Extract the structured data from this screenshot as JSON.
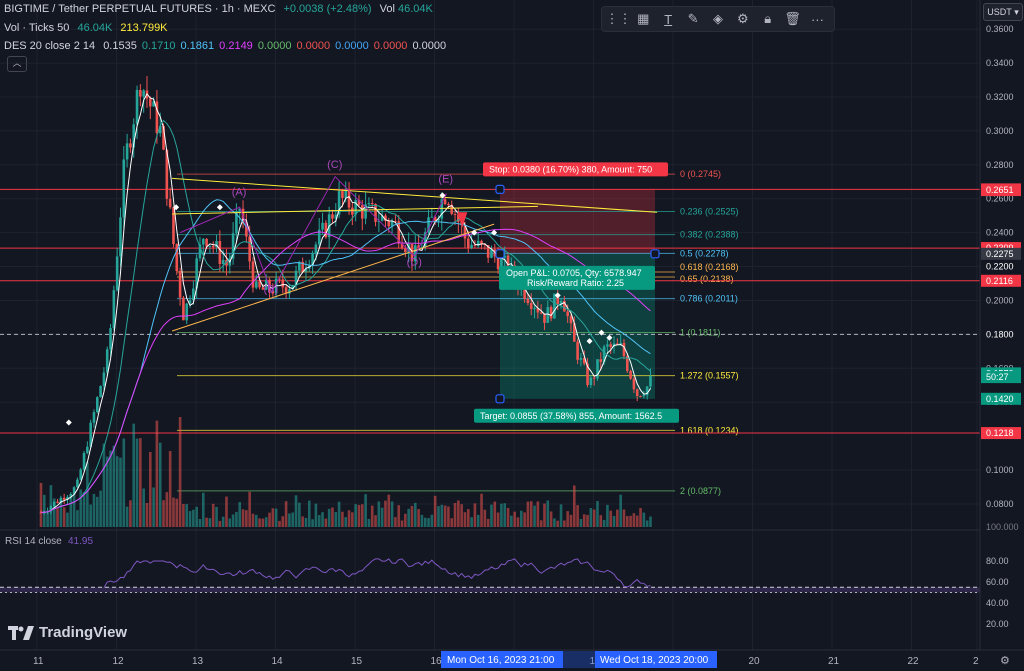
{
  "header": {
    "symbol": "BIGTIME / Tether PERPETUAL FUTURES · 1h · MEXC",
    "change": "+0.0038 (+2.48%)",
    "vol_label": "Vol",
    "vol_value": "46.04K",
    "ticks_label": "Vol · Ticks 50",
    "ticks_v1": "46.04K",
    "ticks_v2": "213.799K",
    "des_label": "DES 20 close 2 14",
    "des_values": [
      "0.1535",
      "0.1710",
      "0.1861",
      "0.2149",
      "0.0000",
      "0.0000",
      "0.0000",
      "0.0000",
      "0.0000"
    ],
    "des_colors": [
      "#d1d4dc",
      "#26a69a",
      "#4fc3f7",
      "#e040fb",
      "#66bb6a",
      "#ef5350",
      "#42a5f5",
      "#ef5350",
      "#d1d4dc"
    ],
    "collapse_icon": "chevron-up-icon"
  },
  "currency": "USDT",
  "toolbar": [
    "grid-icon",
    "text-icon",
    "brush-icon",
    "fill-icon",
    "gear-icon",
    "lock-icon",
    "trash-icon",
    "more-icon"
  ],
  "chart_data": {
    "type": "candlestick",
    "y_axis": {
      "min": 0.0664,
      "max": 0.3654,
      "ticks": [
        "0.3600",
        "0.3400",
        "0.3200",
        "0.3000",
        "0.2800",
        "0.2600",
        "0.2400",
        "0.2200",
        "0.2000",
        "0.1800",
        "0.1600",
        "0.1400",
        "0.1000",
        "0.0800"
      ]
    },
    "x_axis": {
      "ticks": [
        "11",
        "12",
        "13",
        "14",
        "15",
        "16",
        "17",
        "18",
        "19",
        "20",
        "21",
        "22",
        "2"
      ]
    },
    "price_tags": [
      {
        "label": "0.2655",
        "value": 0.2655,
        "color": "#f23645"
      },
      {
        "label": "0.2651",
        "value": 0.2651,
        "color": "#f23645"
      },
      {
        "label": "0.2309",
        "value": 0.2309,
        "color": "#f23645"
      },
      {
        "label": "0.2275",
        "value": 0.2275,
        "color": "#363a45"
      },
      {
        "label": "0.2200",
        "value": 0.22,
        "color": "#131722"
      },
      {
        "label": "0.2116",
        "value": 0.2116,
        "color": "#f23645"
      },
      {
        "label": "0.1800",
        "value": 0.18,
        "color": "#131722"
      },
      {
        "label": "0.1570",
        "value": 0.157,
        "color": "#089981"
      },
      {
        "label": "50:27",
        "value": 0.1548,
        "color": "#089981"
      },
      {
        "label": "0.1420",
        "value": 0.142,
        "color": "#089981"
      },
      {
        "label": "0.1218",
        "value": 0.1218,
        "color": "#f23645"
      }
    ],
    "fib_levels": [
      {
        "label": "0 (0.2745)",
        "value": 0.2745
      },
      {
        "label": "0.236 (0.2525)",
        "value": 0.2525
      },
      {
        "label": "0.382 (0.2388)",
        "value": 0.2388
      },
      {
        "label": "0.5 (0.2278)",
        "value": 0.2278
      },
      {
        "label": "0.618 (0.2168)",
        "value": 0.2168
      },
      {
        "label": "0.65 (0.2138)",
        "value": 0.2138
      },
      {
        "label": "0.786 (0.2011)",
        "value": 0.2011
      },
      {
        "label": "1 (0.1811)",
        "value": 0.1811
      },
      {
        "label": "1.272 (0.1557)",
        "value": 0.1557
      },
      {
        "label": "1.618 (0.1234)",
        "value": 0.1234
      },
      {
        "label": "2 (0.0877)",
        "value": 0.0877
      }
    ],
    "wave_labels": [
      {
        "text": "(A)",
        "day": 13.55,
        "value": 0.262
      },
      {
        "text": "(B)",
        "day": 13.95,
        "value": 0.2048
      },
      {
        "text": "(C)",
        "day": 14.75,
        "value": 0.278
      },
      {
        "text": "(D)",
        "day": 15.75,
        "value": 0.2205
      },
      {
        "text": "(E)",
        "day": 16.15,
        "value": 0.2695
      }
    ],
    "position": {
      "stop_label": "Stop: 0.0380 (16.70%) 380, Amount: 750",
      "pnl_label": "Open P&L: 0.0705, Qty: 6578.947",
      "rr_label": "Risk/Reward Ratio: 2.25",
      "target_label": "Target: 0.0855 (37.58%) 855, Amount: 1562.5",
      "entry": 0.2275,
      "stop": 0.2655,
      "target": 0.142
    },
    "horizontal_lines": [
      0.2655,
      0.2309,
      0.2116,
      0.18,
      0.1218
    ],
    "rsi": {
      "label": "RSI 14 close",
      "value": "41.95",
      "ticks": [
        "80.00",
        "60.00",
        "40.00",
        "20.00"
      ],
      "band": [
        50,
        55
      ]
    },
    "volume_axis_label": "100.000",
    "crosshair": {
      "date": "Mon Oct 16, 2023",
      "time": "21:00",
      "date2": "Wed Oct 18, 2023",
      "time2": "20:00"
    }
  },
  "brand": "TradingView"
}
